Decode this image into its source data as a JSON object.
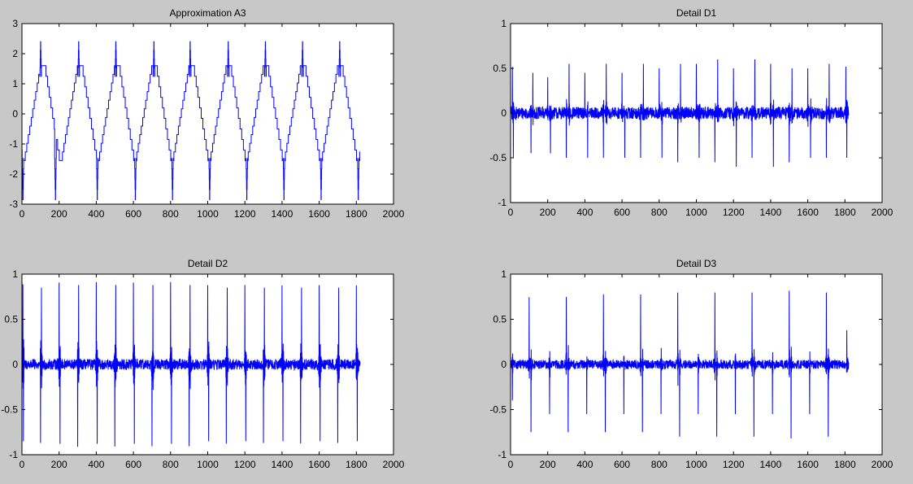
{
  "figure": {
    "background": "#c8c8c8",
    "axes_background": "#ffffff",
    "line_color": "#0000ff"
  },
  "chart_data": [
    {
      "type": "line",
      "title": "Approximation A3",
      "xlim": [
        0,
        2000
      ],
      "ylim": [
        -3,
        3
      ],
      "xticks": [
        0,
        200,
        400,
        600,
        800,
        1000,
        1200,
        1400,
        1600,
        1800,
        2000
      ],
      "yticks": [
        -3,
        -2,
        -1,
        0,
        1,
        2,
        3
      ],
      "n_samples": 1821,
      "period": 200,
      "pattern": "periodic",
      "levels": [
        1.6,
        1.1,
        0.4,
        -0.3,
        -0.9,
        -1.3,
        -1.55
      ],
      "peak_max": 2.4,
      "trough_min": -2.85,
      "spikes": [
        {
          "x": 5,
          "y": -2.85
        },
        {
          "x": 100,
          "y": 2.4
        },
        {
          "x": 180,
          "y": -2.85
        },
        {
          "x": 305,
          "y": 2.4
        },
        {
          "x": 405,
          "y": -2.85
        },
        {
          "x": 505,
          "y": 2.4
        },
        {
          "x": 610,
          "y": -2.85
        },
        {
          "x": 710,
          "y": 2.4
        },
        {
          "x": 810,
          "y": -2.85
        },
        {
          "x": 905,
          "y": 2.4
        },
        {
          "x": 1010,
          "y": -2.85
        },
        {
          "x": 1110,
          "y": 2.4
        },
        {
          "x": 1210,
          "y": -2.85
        },
        {
          "x": 1310,
          "y": 2.4
        },
        {
          "x": 1410,
          "y": -2.85
        },
        {
          "x": 1510,
          "y": 2.4
        },
        {
          "x": 1610,
          "y": -2.85
        },
        {
          "x": 1710,
          "y": 2.4
        },
        {
          "x": 1810,
          "y": -2.85
        }
      ]
    },
    {
      "type": "line",
      "title": "Detail D1",
      "xlim": [
        0,
        2000
      ],
      "ylim": [
        -1,
        1
      ],
      "xticks": [
        0,
        200,
        400,
        600,
        800,
        1000,
        1200,
        1400,
        1600,
        1800,
        2000
      ],
      "yticks": [
        -1,
        -0.5,
        0,
        0.5,
        1
      ],
      "n_samples": 1821,
      "pattern": "noise_with_spikes",
      "noise_amplitude": 0.07,
      "spikes": [
        {
          "x": 10,
          "y": 0.5
        },
        {
          "x": 15,
          "y": -0.5
        },
        {
          "x": 110,
          "y": -0.45
        },
        {
          "x": 120,
          "y": 0.45
        },
        {
          "x": 200,
          "y": 0.4
        },
        {
          "x": 215,
          "y": -0.45
        },
        {
          "x": 300,
          "y": -0.5
        },
        {
          "x": 315,
          "y": 0.55
        },
        {
          "x": 400,
          "y": 0.45
        },
        {
          "x": 415,
          "y": -0.5
        },
        {
          "x": 500,
          "y": -0.5
        },
        {
          "x": 515,
          "y": 0.55
        },
        {
          "x": 600,
          "y": 0.45
        },
        {
          "x": 615,
          "y": -0.5
        },
        {
          "x": 700,
          "y": -0.5
        },
        {
          "x": 715,
          "y": 0.55
        },
        {
          "x": 800,
          "y": 0.5
        },
        {
          "x": 815,
          "y": -0.5
        },
        {
          "x": 900,
          "y": -0.55
        },
        {
          "x": 915,
          "y": 0.55
        },
        {
          "x": 1000,
          "y": 0.55
        },
        {
          "x": 1015,
          "y": -0.5
        },
        {
          "x": 1100,
          "y": -0.55
        },
        {
          "x": 1115,
          "y": 0.6
        },
        {
          "x": 1200,
          "y": 0.5
        },
        {
          "x": 1215,
          "y": -0.6
        },
        {
          "x": 1300,
          "y": -0.5
        },
        {
          "x": 1315,
          "y": 0.6
        },
        {
          "x": 1400,
          "y": 0.55
        },
        {
          "x": 1415,
          "y": -0.6
        },
        {
          "x": 1500,
          "y": -0.55
        },
        {
          "x": 1515,
          "y": 0.5
        },
        {
          "x": 1600,
          "y": 0.5
        },
        {
          "x": 1615,
          "y": -0.5
        },
        {
          "x": 1700,
          "y": -0.5
        },
        {
          "x": 1715,
          "y": 0.55
        },
        {
          "x": 1805,
          "y": 0.5
        },
        {
          "x": 1810,
          "y": -0.5
        }
      ]
    },
    {
      "type": "line",
      "title": "Detail D2",
      "xlim": [
        0,
        2000
      ],
      "ylim": [
        -1,
        1
      ],
      "xticks": [
        0,
        200,
        400,
        600,
        800,
        1000,
        1200,
        1400,
        1600,
        1800,
        2000
      ],
      "yticks": [
        -1,
        -0.5,
        0,
        0.5,
        1
      ],
      "n_samples": 1821,
      "pattern": "noise_with_spikes",
      "noise_amplitude": 0.06,
      "spikes": [
        {
          "x": 5,
          "y": 0.85
        },
        {
          "x": 8,
          "y": -0.85
        },
        {
          "x": 100,
          "y": -0.85
        },
        {
          "x": 105,
          "y": 0.85
        },
        {
          "x": 200,
          "y": 0.88
        },
        {
          "x": 205,
          "y": -0.88
        },
        {
          "x": 300,
          "y": -0.88
        },
        {
          "x": 305,
          "y": 0.88
        },
        {
          "x": 400,
          "y": 0.88
        },
        {
          "x": 405,
          "y": -0.88
        },
        {
          "x": 500,
          "y": -0.88
        },
        {
          "x": 505,
          "y": 0.88
        },
        {
          "x": 600,
          "y": 0.88
        },
        {
          "x": 605,
          "y": -0.88
        },
        {
          "x": 700,
          "y": -0.88
        },
        {
          "x": 705,
          "y": 0.88
        },
        {
          "x": 800,
          "y": 0.88
        },
        {
          "x": 805,
          "y": -0.88
        },
        {
          "x": 900,
          "y": -0.88
        },
        {
          "x": 905,
          "y": 0.88
        },
        {
          "x": 1000,
          "y": 0.85
        },
        {
          "x": 1005,
          "y": -0.85
        },
        {
          "x": 1100,
          "y": -0.85
        },
        {
          "x": 1105,
          "y": 0.85
        },
        {
          "x": 1200,
          "y": 0.85
        },
        {
          "x": 1205,
          "y": -0.85
        },
        {
          "x": 1300,
          "y": -0.85
        },
        {
          "x": 1305,
          "y": 0.85
        },
        {
          "x": 1400,
          "y": 0.85
        },
        {
          "x": 1405,
          "y": -0.85
        },
        {
          "x": 1500,
          "y": -0.85
        },
        {
          "x": 1505,
          "y": 0.85
        },
        {
          "x": 1600,
          "y": 0.85
        },
        {
          "x": 1605,
          "y": -0.85
        },
        {
          "x": 1700,
          "y": -0.85
        },
        {
          "x": 1705,
          "y": 0.85
        },
        {
          "x": 1800,
          "y": 0.85
        },
        {
          "x": 1805,
          "y": -0.85
        }
      ]
    },
    {
      "type": "line",
      "title": "Detail D3",
      "xlim": [
        0,
        2000
      ],
      "ylim": [
        -1,
        1
      ],
      "xticks": [
        0,
        200,
        400,
        600,
        800,
        1000,
        1200,
        1400,
        1600,
        1800,
        2000
      ],
      "yticks": [
        -1,
        -0.5,
        0,
        0.5,
        1
      ],
      "n_samples": 1821,
      "pattern": "noise_with_spikes",
      "noise_amplitude": 0.05,
      "spikes": [
        {
          "x": 10,
          "y": -0.4
        },
        {
          "x": 100,
          "y": 0.75
        },
        {
          "x": 110,
          "y": -0.75
        },
        {
          "x": 210,
          "y": -0.55
        },
        {
          "x": 300,
          "y": 0.75
        },
        {
          "x": 310,
          "y": -0.75
        },
        {
          "x": 410,
          "y": -0.55
        },
        {
          "x": 500,
          "y": 0.78
        },
        {
          "x": 510,
          "y": -0.75
        },
        {
          "x": 610,
          "y": -0.55
        },
        {
          "x": 700,
          "y": 0.78
        },
        {
          "x": 710,
          "y": -0.75
        },
        {
          "x": 810,
          "y": -0.55
        },
        {
          "x": 900,
          "y": 0.8
        },
        {
          "x": 910,
          "y": -0.8
        },
        {
          "x": 1010,
          "y": -0.55
        },
        {
          "x": 1100,
          "y": 0.8
        },
        {
          "x": 1110,
          "y": -0.8
        },
        {
          "x": 1210,
          "y": -0.55
        },
        {
          "x": 1300,
          "y": 0.8
        },
        {
          "x": 1310,
          "y": -0.8
        },
        {
          "x": 1410,
          "y": -0.55
        },
        {
          "x": 1500,
          "y": 0.82
        },
        {
          "x": 1510,
          "y": -0.82
        },
        {
          "x": 1610,
          "y": -0.55
        },
        {
          "x": 1700,
          "y": 0.8
        },
        {
          "x": 1710,
          "y": -0.8
        },
        {
          "x": 1810,
          "y": 0.38
        }
      ]
    }
  ]
}
